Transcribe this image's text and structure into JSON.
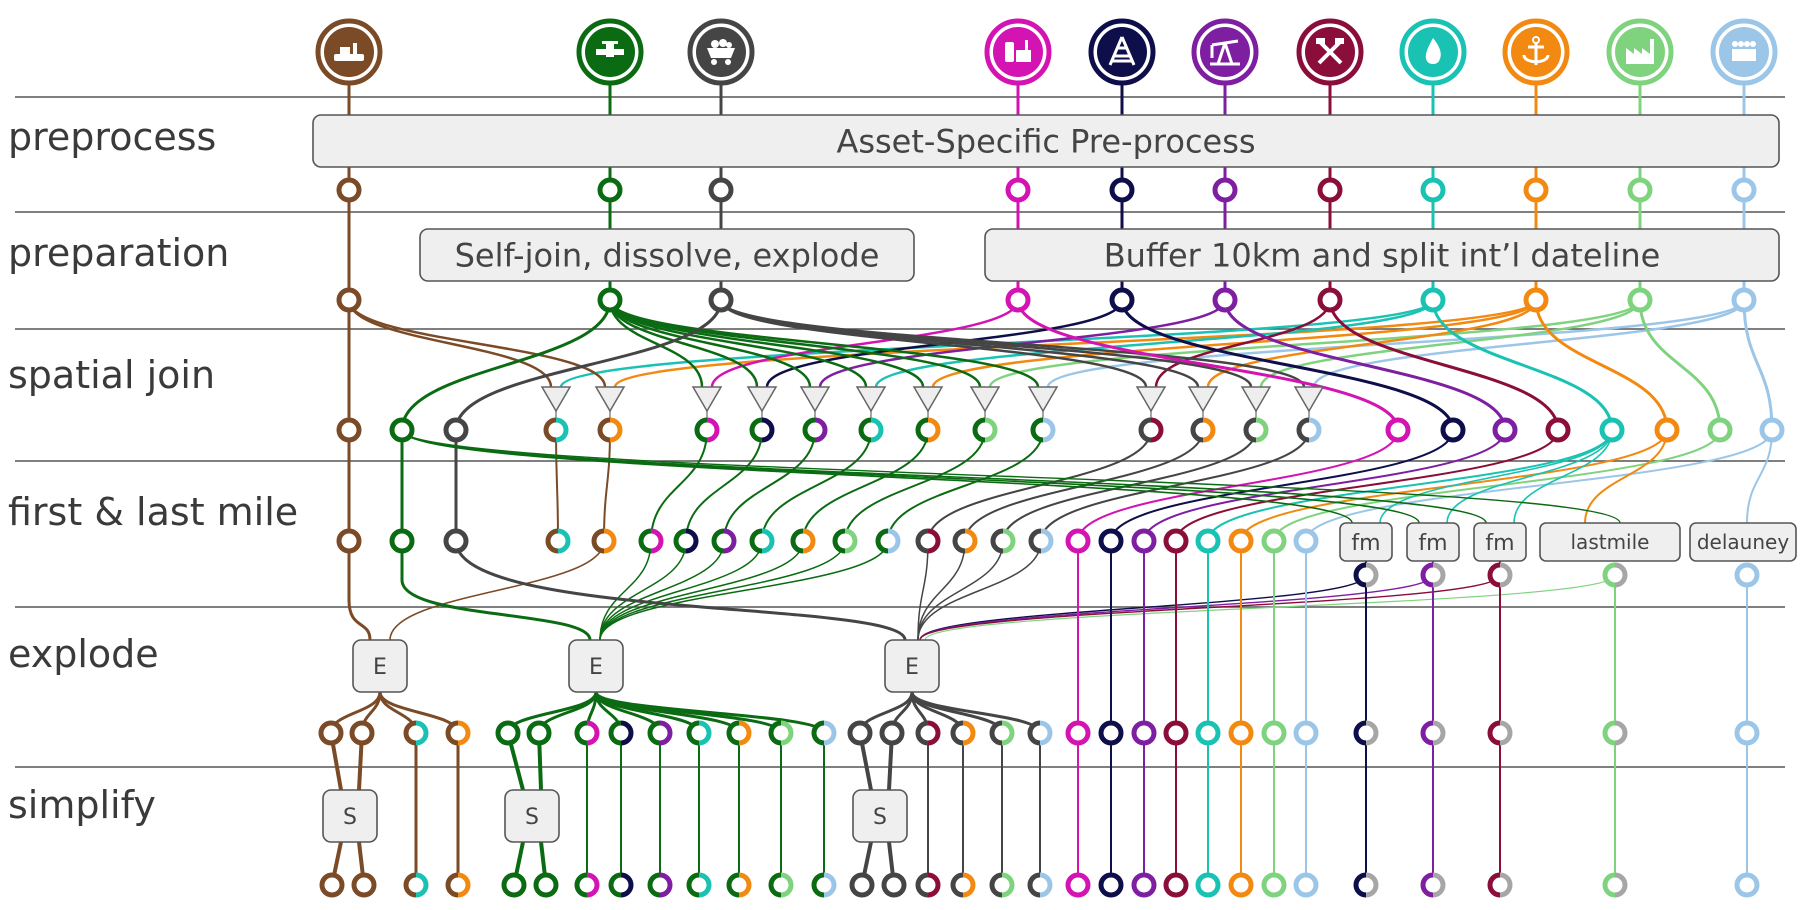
{
  "rows": [
    {
      "id": "preprocess",
      "label": "preprocess"
    },
    {
      "id": "preparation",
      "label": "preparation"
    },
    {
      "id": "spatial",
      "label": "spatial join"
    },
    {
      "id": "firstlast",
      "label": "first & last mile"
    },
    {
      "id": "explode",
      "label": "explode"
    },
    {
      "id": "simplify",
      "label": "simplify"
    }
  ],
  "boxes": {
    "preprocess": "Asset-Specific Pre-process",
    "selfjoin": "Self-join, dissolve, explode",
    "buffer": "Buffer 10km and split int’l dateline",
    "fm": "fm",
    "lastmile": "lastmile",
    "delauney": "delauney",
    "explode": "E",
    "simplify": "S"
  },
  "assets": [
    {
      "id": "ship",
      "icon": "ship-icon",
      "color": "#7b4a26"
    },
    {
      "id": "pipeline",
      "icon": "pipeline-icon",
      "color": "#0b6b12"
    },
    {
      "id": "rail",
      "icon": "coal-cart-icon",
      "color": "#454545"
    },
    {
      "id": "refinery",
      "icon": "refinery-icon",
      "color": "#d314b3"
    },
    {
      "id": "oilrig",
      "icon": "oil-rig-icon",
      "color": "#0e0e4a"
    },
    {
      "id": "oilwell",
      "icon": "oil-pump-icon",
      "color": "#7d1fa0"
    },
    {
      "id": "mine",
      "icon": "mining-icon",
      "color": "#8a0d3a"
    },
    {
      "id": "gas",
      "icon": "gas-flame-icon",
      "color": "#19c2b2"
    },
    {
      "id": "port",
      "icon": "anchor-icon",
      "color": "#f28a12"
    },
    {
      "id": "plant",
      "icon": "factory-icon",
      "color": "#7fd37f"
    },
    {
      "id": "city",
      "icon": "population-icon",
      "color": "#9cc6e8"
    }
  ],
  "colors": {
    "node_gray": "#a6a6a6",
    "box_fill": "#efefef",
    "box_stroke": "#555555",
    "divider": "#555555"
  }
}
